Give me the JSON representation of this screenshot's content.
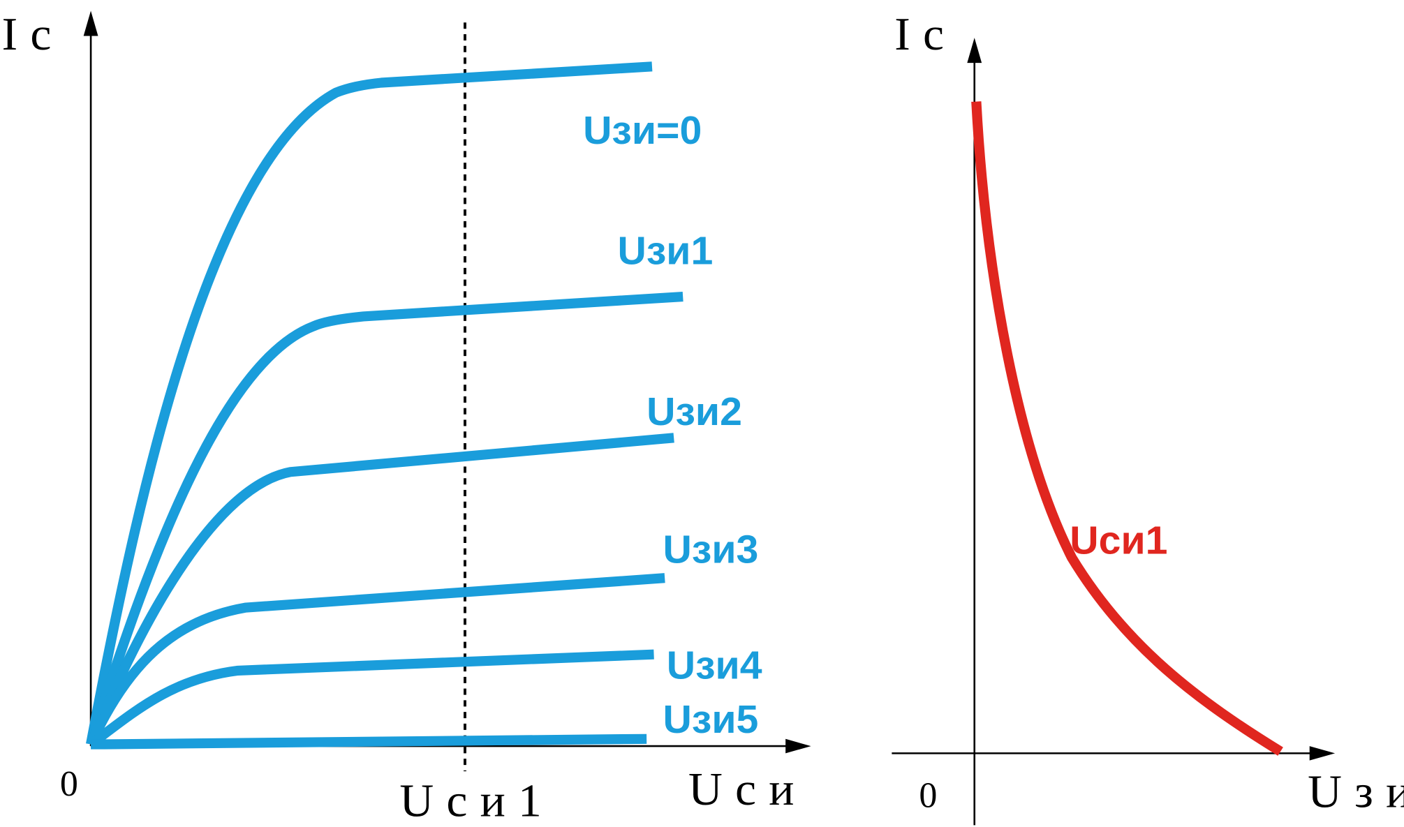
{
  "left_chart": {
    "y_axis_label": "Iс",
    "origin": "0",
    "x_axis_label": "Uси",
    "marker_label": "Uси1",
    "curve_labels": [
      "Uзи=0",
      "Uзи1",
      "Uзи2",
      "Uзи3",
      "Uзи4",
      "Uзи5"
    ]
  },
  "right_chart": {
    "y_axis_label": "Iс",
    "origin": "0",
    "x_axis_label": "Uзи",
    "curve_label": "Uси1"
  }
}
